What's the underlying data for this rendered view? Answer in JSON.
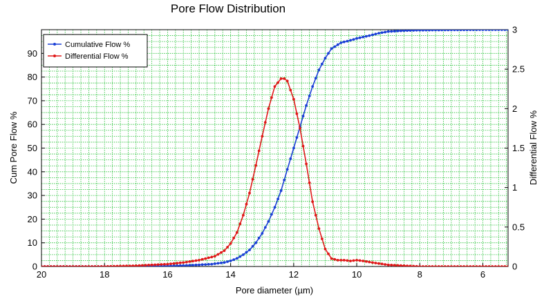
{
  "chart_data": {
    "type": "line",
    "title": "Pore Flow Distribution",
    "xlabel": "Pore diameter (µm)",
    "ylabel": "Cum Pore Flow %",
    "y2label": "Differential Flow %",
    "xlim": [
      20,
      5.2
    ],
    "x_reversed": true,
    "ylim": [
      0,
      100
    ],
    "y2lim": [
      0,
      3
    ],
    "x_ticks": [
      "20",
      "18",
      "16",
      "14",
      "12",
      "10",
      "8",
      "6"
    ],
    "y_ticks": [
      "0",
      "10",
      "20",
      "30",
      "40",
      "50",
      "60",
      "70",
      "80",
      "90"
    ],
    "y2_ticks": [
      "0",
      "0.5",
      "1",
      "1.5",
      "2",
      "2.5",
      "3"
    ],
    "grid": true,
    "legend_position": "top-left",
    "series": [
      {
        "name": "Cumulative Flow %",
        "axis": "left",
        "color": "#1a3fd6",
        "x": [
          20,
          19,
          18,
          17,
          16,
          15.5,
          15,
          14.6,
          14.2,
          14.0,
          13.8,
          13.6,
          13.4,
          13.2,
          13.0,
          12.8,
          12.6,
          12.4,
          12.2,
          12.0,
          11.8,
          11.6,
          11.4,
          11.2,
          11.0,
          10.8,
          10.5,
          10.2,
          10.0,
          9.6,
          9.3,
          9.0,
          8.5,
          8,
          7,
          6,
          5.2
        ],
        "y": [
          0,
          0,
          0,
          0.1,
          0.2,
          0.4,
          0.7,
          1,
          1.7,
          2.4,
          3.4,
          5,
          7,
          10,
          14,
          19,
          25,
          32,
          41,
          50,
          59,
          68,
          76,
          83,
          88,
          92,
          94.5,
          95.5,
          96.3,
          97.5,
          98.5,
          99.2,
          99.6,
          99.8,
          99.9,
          100,
          100
        ]
      },
      {
        "name": "Differential Flow %",
        "axis": "right",
        "color": "#e01818",
        "x": [
          20,
          18,
          17,
          16,
          15.5,
          15,
          14.5,
          14.2,
          14.0,
          13.8,
          13.6,
          13.4,
          13.2,
          13.0,
          12.8,
          12.6,
          12.4,
          12.3,
          12.2,
          12.0,
          11.8,
          11.6,
          11.4,
          11.2,
          11.0,
          10.8,
          10.6,
          10.4,
          10.2,
          10.0,
          9.8,
          9.5,
          9.0,
          8.5,
          8,
          7,
          6,
          5.2
        ],
        "y": [
          0,
          0,
          0.01,
          0.03,
          0.05,
          0.08,
          0.13,
          0.2,
          0.29,
          0.43,
          0.65,
          0.93,
          1.28,
          1.65,
          2.0,
          2.28,
          2.38,
          2.38,
          2.35,
          2.12,
          1.75,
          1.3,
          0.82,
          0.48,
          0.22,
          0.1,
          0.08,
          0.08,
          0.07,
          0.08,
          0.07,
          0.05,
          0.02,
          0.01,
          0,
          0,
          0,
          0
        ]
      }
    ]
  }
}
